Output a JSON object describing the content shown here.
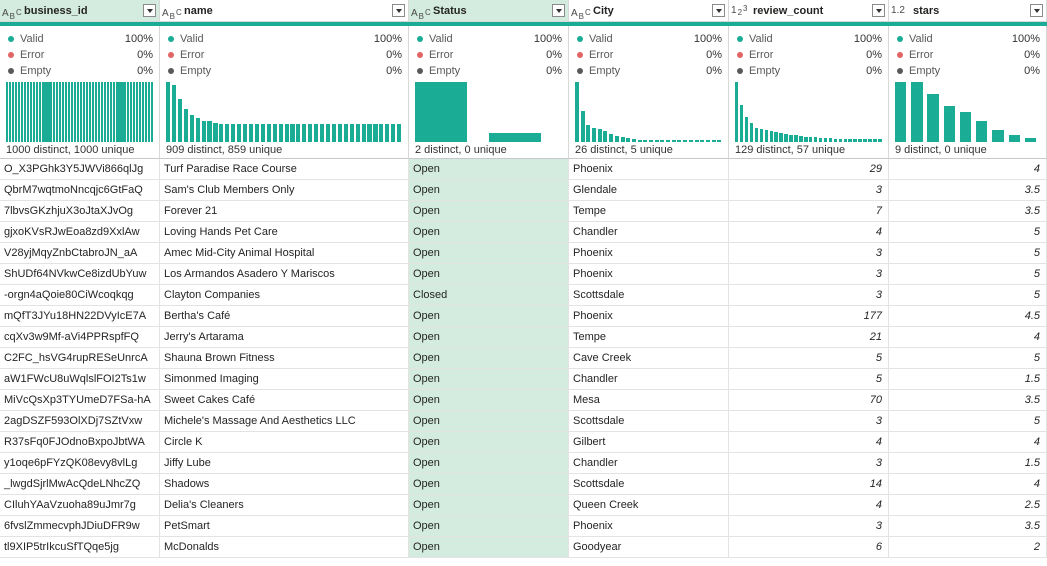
{
  "colors": {
    "accent": "#1aac95",
    "valid": "#1aac95",
    "error": "#e36464",
    "empty": "#5a5a5a",
    "selected_bg": "#d3ecdf"
  },
  "quality_labels": {
    "valid": "Valid",
    "error": "Error",
    "empty": "Empty"
  },
  "columns": [
    {
      "key": "business_id",
      "title": "business_id",
      "type_icon": "text-type-icon",
      "type_glyph": "A",
      "type_sub": "B",
      "type_sub2": "C",
      "selected": true,
      "numeric": false,
      "quality": {
        "valid": "100%",
        "error": "0%",
        "empty": "0%"
      },
      "distinct": "1000 distinct, 1000 unique",
      "histogram": [
        1,
        1,
        1,
        1,
        1,
        1,
        1,
        1,
        1,
        1,
        1,
        1,
        1,
        1,
        1,
        1,
        1,
        1,
        1,
        1,
        1,
        1,
        1,
        1,
        1,
        1,
        1,
        1,
        1,
        1,
        1,
        1,
        1,
        1,
        1,
        1,
        1,
        1,
        1,
        1,
        1,
        1,
        1,
        1,
        1,
        1,
        1,
        1,
        1,
        1
      ]
    },
    {
      "key": "name",
      "title": "name",
      "type_icon": "text-type-icon",
      "type_glyph": "A",
      "type_sub": "B",
      "type_sub2": "C",
      "selected": false,
      "numeric": false,
      "quality": {
        "valid": "100%",
        "error": "0%",
        "empty": "0%"
      },
      "distinct": "909 distinct, 859 unique",
      "histogram": [
        1,
        0.95,
        0.72,
        0.55,
        0.45,
        0.4,
        0.35,
        0.35,
        0.32,
        0.3,
        0.3,
        0.3,
        0.3,
        0.3,
        0.3,
        0.3,
        0.3,
        0.3,
        0.3,
        0.3,
        0.3,
        0.3,
        0.3,
        0.3,
        0.3,
        0.3,
        0.3,
        0.3,
        0.3,
        0.3,
        0.3,
        0.3,
        0.3,
        0.3,
        0.3,
        0.3,
        0.3,
        0.3,
        0.3,
        0.3
      ]
    },
    {
      "key": "Status",
      "title": "Status",
      "type_icon": "text-type-icon",
      "type_glyph": "A",
      "type_sub": "B",
      "type_sub2": "C",
      "selected": true,
      "numeric": false,
      "quality": {
        "valid": "100%",
        "error": "0%",
        "empty": "0%"
      },
      "distinct": "2 distinct, 0 unique",
      "histogram": [
        1,
        0.15
      ]
    },
    {
      "key": "City",
      "title": "City",
      "type_icon": "text-type-icon",
      "type_glyph": "A",
      "type_sub": "B",
      "type_sub2": "C",
      "selected": false,
      "numeric": false,
      "quality": {
        "valid": "100%",
        "error": "0%",
        "empty": "0%"
      },
      "distinct": "26 distinct, 5 unique",
      "histogram": [
        1,
        0.52,
        0.28,
        0.24,
        0.22,
        0.18,
        0.13,
        0.1,
        0.08,
        0.07,
        0.05,
        0.04,
        0.03,
        0.03,
        0.03,
        0.03,
        0.03,
        0.03,
        0.03,
        0.03,
        0.03,
        0.03,
        0.03,
        0.03,
        0.03,
        0.03
      ]
    },
    {
      "key": "review_count",
      "title": "review_count",
      "type_icon": "whole-number-icon",
      "type_glyph": "1",
      "type_sub": "2",
      "type_sub2": "3",
      "selected": false,
      "numeric": true,
      "quality": {
        "valid": "100%",
        "error": "0%",
        "empty": "0%"
      },
      "distinct": "129 distinct, 57 unique",
      "histogram": [
        1,
        0.62,
        0.42,
        0.32,
        0.24,
        0.22,
        0.2,
        0.18,
        0.16,
        0.15,
        0.13,
        0.12,
        0.11,
        0.1,
        0.08,
        0.08,
        0.08,
        0.06,
        0.06,
        0.06,
        0.05,
        0.05,
        0.05,
        0.05,
        0.05,
        0.05,
        0.05,
        0.05,
        0.05,
        0.05
      ]
    },
    {
      "key": "stars",
      "title": "stars",
      "type_icon": "decimal-number-icon",
      "type_glyph": "1.2",
      "type_sub": "",
      "type_sub2": "",
      "selected": false,
      "numeric": true,
      "quality": {
        "valid": "100%",
        "error": "0%",
        "empty": "0%"
      },
      "distinct": "9 distinct, 0 unique",
      "histogram": [
        1,
        1,
        0.8,
        0.6,
        0.5,
        0.35,
        0.2,
        0.12,
        0.06
      ]
    }
  ],
  "rows": [
    [
      "O_X3PGhk3Y5JWVi866qlJg",
      "Turf Paradise Race Course",
      "Open",
      "Phoenix",
      "29",
      "4"
    ],
    [
      "QbrM7wqtmoNncqjc6GtFaQ",
      "Sam's Club Members Only",
      "Open",
      "Glendale",
      "3",
      "3.5"
    ],
    [
      "7lbvsGKzhjuX3oJtaXJvOg",
      "Forever 21",
      "Open",
      "Tempe",
      "7",
      "3.5"
    ],
    [
      "gjxoKVsRJwEoa8zd9XxlAw",
      "Loving Hands Pet Care",
      "Open",
      "Chandler",
      "4",
      "5"
    ],
    [
      "V28yjMqyZnbCtabroJN_aA",
      "Amec Mid-City Animal Hospital",
      "Open",
      "Phoenix",
      "3",
      "5"
    ],
    [
      "ShUDf64NVkwCe8izdUbYuw",
      "Los Armandos Asadero Y Mariscos",
      "Open",
      "Phoenix",
      "3",
      "5"
    ],
    [
      "-orgn4aQoie80CiWcoqkqg",
      "Clayton Companies",
      "Closed",
      "Scottsdale",
      "3",
      "5"
    ],
    [
      "mQfT3JYu18HN22DVyIcE7A",
      "Bertha's Café",
      "Open",
      "Phoenix",
      "177",
      "4.5"
    ],
    [
      "cqXv3w9Mf-aVi4PPRspfFQ",
      "Jerry's Artarama",
      "Open",
      "Tempe",
      "21",
      "4"
    ],
    [
      "C2FC_hsVG4rupRESeUnrcA",
      "Shauna Brown Fitness",
      "Open",
      "Cave Creek",
      "5",
      "5"
    ],
    [
      "aW1FWcU8uWqlslFOI2Ts1w",
      "Simonmed Imaging",
      "Open",
      "Chandler",
      "5",
      "1.5"
    ],
    [
      "MiVcQsXp3TYUmeD7FSa-hA",
      "Sweet Cakes Café",
      "Open",
      "Mesa",
      "70",
      "3.5"
    ],
    [
      "2agDSZF593OlXDj7SZtVxw",
      "Michele's Massage And  Aesthetics LLC",
      "Open",
      "Scottsdale",
      "3",
      "5"
    ],
    [
      "R37sFq0FJOdnoBxpoJbtWA",
      "Circle K",
      "Open",
      "Gilbert",
      "4",
      "4"
    ],
    [
      "y1oqe6pFYzQK08evy8vlLg",
      "Jiffy Lube",
      "Open",
      "Chandler",
      "3",
      "1.5"
    ],
    [
      "_lwgdSjrlMwAcQdeLNhcZQ",
      "Shadows",
      "Open",
      "Scottsdale",
      "14",
      "4"
    ],
    [
      "CIluhYAaVzuoha89uJmr7g",
      "Delia's Cleaners",
      "Open",
      "Queen Creek",
      "4",
      "2.5"
    ],
    [
      "6fvslZmmecvphJDiuDFR9w",
      "PetSmart",
      "Open",
      "Phoenix",
      "3",
      "3.5"
    ],
    [
      "tl9XIP5trIkcuSfTQqe5jg",
      "McDonalds",
      "Open",
      "Goodyear",
      "6",
      "2"
    ]
  ]
}
